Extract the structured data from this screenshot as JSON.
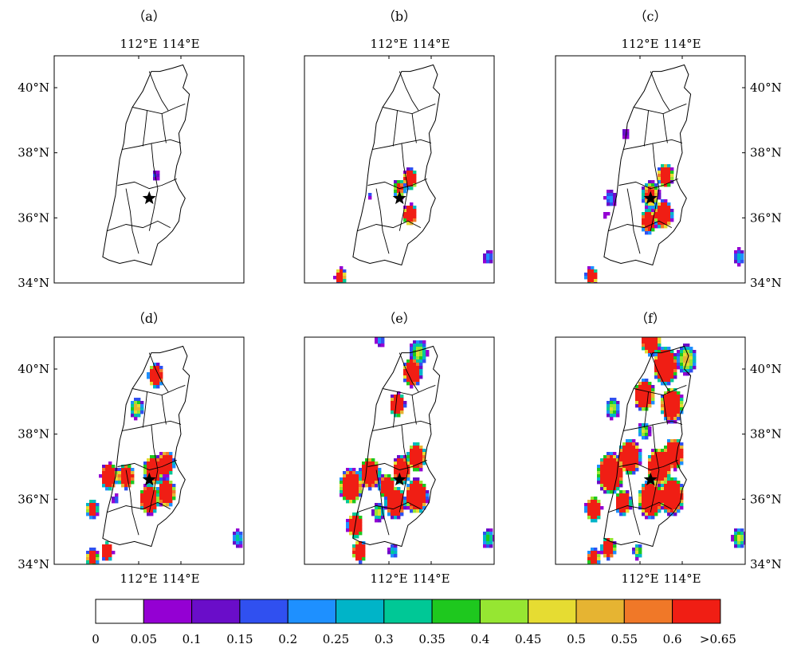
{
  "chart_data": {
    "type": "heatmap",
    "description_panels": "six maps of the same region with a shared colour scale",
    "panels": [
      {
        "label": "（a）",
        "x_ticks": [
          "112°E",
          "114°E"
        ],
        "y_ticks": [
          "40°N",
          "38°N",
          "36°N",
          "34°N"
        ],
        "x_tick_side": "top",
        "y_tick_side": "left",
        "blobs": [
          {
            "lon": 112.8,
            "lat": 37.3,
            "peak": 0.12,
            "r": 0.18
          }
        ]
      },
      {
        "label": "（b）",
        "x_ticks": [
          "112°E",
          "114°E"
        ],
        "y_ticks": [],
        "x_tick_side": "top",
        "y_tick_side": "none",
        "blobs": [
          {
            "lon": 112.5,
            "lat": 36.9,
            "peak": 0.45,
            "r": 0.32
          },
          {
            "lon": 113.0,
            "lat": 37.2,
            "peak": 0.9,
            "r": 0.33
          },
          {
            "lon": 113.0,
            "lat": 36.1,
            "peak": 0.9,
            "r": 0.34
          },
          {
            "lon": 111.1,
            "lat": 36.7,
            "peak": 0.1,
            "r": 0.12
          },
          {
            "lon": 109.7,
            "lat": 34.2,
            "peak": 0.6,
            "r": 0.28
          },
          {
            "lon": 116.7,
            "lat": 34.8,
            "peak": 0.15,
            "r": 0.25
          }
        ]
      },
      {
        "label": "（c）",
        "x_ticks": [
          "112°E",
          "114°E"
        ],
        "y_ticks": [
          "40°N",
          "38°N",
          "36°N",
          "34°N"
        ],
        "x_tick_side": "top",
        "y_tick_side": "right",
        "blobs": [
          {
            "lon": 113.2,
            "lat": 37.3,
            "peak": 0.9,
            "r": 0.38
          },
          {
            "lon": 112.5,
            "lat": 36.7,
            "peak": 0.5,
            "r": 0.45
          },
          {
            "lon": 113.1,
            "lat": 36.1,
            "peak": 1.0,
            "r": 0.45
          },
          {
            "lon": 112.4,
            "lat": 35.9,
            "peak": 0.7,
            "r": 0.4
          },
          {
            "lon": 111.3,
            "lat": 38.6,
            "peak": 0.1,
            "r": 0.2
          },
          {
            "lon": 110.6,
            "lat": 36.6,
            "peak": 0.15,
            "r": 0.3
          },
          {
            "lon": 110.4,
            "lat": 36.1,
            "peak": 0.08,
            "r": 0.13
          },
          {
            "lon": 109.7,
            "lat": 34.2,
            "peak": 0.7,
            "r": 0.3
          },
          {
            "lon": 116.7,
            "lat": 34.8,
            "peak": 0.18,
            "r": 0.28
          }
        ]
      },
      {
        "label": "（d）",
        "x_ticks": [
          "112°E",
          "114°E"
        ],
        "y_ticks": [
          "40°N",
          "38°N",
          "36°N",
          "34°N"
        ],
        "x_tick_side": "bottom",
        "y_tick_side": "left",
        "blobs": [
          {
            "lon": 112.8,
            "lat": 39.8,
            "peak": 0.9,
            "r": 0.38
          },
          {
            "lon": 111.9,
            "lat": 38.8,
            "peak": 0.35,
            "r": 0.34
          },
          {
            "lon": 110.6,
            "lat": 36.7,
            "peak": 1.0,
            "r": 0.42
          },
          {
            "lon": 111.4,
            "lat": 36.7,
            "peak": 0.9,
            "r": 0.4
          },
          {
            "lon": 112.7,
            "lat": 36.9,
            "peak": 0.9,
            "r": 0.48
          },
          {
            "lon": 113.3,
            "lat": 37.1,
            "peak": 0.9,
            "r": 0.4
          },
          {
            "lon": 112.5,
            "lat": 36.0,
            "peak": 1.0,
            "r": 0.48
          },
          {
            "lon": 113.3,
            "lat": 36.2,
            "peak": 1.0,
            "r": 0.45
          },
          {
            "lon": 110.9,
            "lat": 36.0,
            "peak": 0.12,
            "r": 0.18
          },
          {
            "lon": 109.8,
            "lat": 35.7,
            "peak": 0.6,
            "r": 0.3
          },
          {
            "lon": 110.5,
            "lat": 34.4,
            "peak": 0.9,
            "r": 0.3
          },
          {
            "lon": 109.8,
            "lat": 34.2,
            "peak": 0.7,
            "r": 0.3
          },
          {
            "lon": 116.7,
            "lat": 34.8,
            "peak": 0.2,
            "r": 0.3
          }
        ]
      },
      {
        "label": "（e）",
        "x_ticks": [
          "112°E",
          "114°E"
        ],
        "y_ticks": [],
        "x_tick_side": "bottom",
        "y_tick_side": "none",
        "blobs": [
          {
            "lon": 113.1,
            "lat": 39.9,
            "peak": 1.0,
            "r": 0.45
          },
          {
            "lon": 113.4,
            "lat": 40.5,
            "peak": 0.3,
            "r": 0.45
          },
          {
            "lon": 112.4,
            "lat": 38.9,
            "peak": 0.9,
            "r": 0.38
          },
          {
            "lon": 110.2,
            "lat": 36.4,
            "peak": 1.0,
            "r": 0.55
          },
          {
            "lon": 111.1,
            "lat": 36.8,
            "peak": 1.0,
            "r": 0.5
          },
          {
            "lon": 111.9,
            "lat": 36.4,
            "peak": 0.8,
            "r": 0.4
          },
          {
            "lon": 112.6,
            "lat": 36.9,
            "peak": 0.9,
            "r": 0.45
          },
          {
            "lon": 113.3,
            "lat": 37.3,
            "peak": 1.0,
            "r": 0.45
          },
          {
            "lon": 112.3,
            "lat": 35.9,
            "peak": 1.0,
            "r": 0.5
          },
          {
            "lon": 113.3,
            "lat": 36.1,
            "peak": 1.0,
            "r": 0.55
          },
          {
            "lon": 111.5,
            "lat": 35.6,
            "peak": 0.3,
            "r": 0.3
          },
          {
            "lon": 110.4,
            "lat": 35.2,
            "peak": 0.9,
            "r": 0.4
          },
          {
            "lon": 110.6,
            "lat": 34.4,
            "peak": 0.9,
            "r": 0.35
          },
          {
            "lon": 112.2,
            "lat": 34.4,
            "peak": 0.2,
            "r": 0.25
          },
          {
            "lon": 111.6,
            "lat": 40.9,
            "peak": 0.15,
            "r": 0.25
          },
          {
            "lon": 116.7,
            "lat": 34.8,
            "peak": 0.25,
            "r": 0.32
          }
        ]
      },
      {
        "label": "（f）",
        "x_ticks": [
          "112°E",
          "114°E"
        ],
        "y_ticks": [
          "40°N",
          "38°N",
          "36°N",
          "34°N"
        ],
        "x_tick_side": "bottom",
        "y_tick_side": "right",
        "blobs": [
          {
            "lon": 113.2,
            "lat": 40.1,
            "peak": 1.0,
            "r": 0.6
          },
          {
            "lon": 112.5,
            "lat": 40.9,
            "peak": 0.9,
            "r": 0.5
          },
          {
            "lon": 114.2,
            "lat": 40.3,
            "peak": 0.35,
            "r": 0.5
          },
          {
            "lon": 112.2,
            "lat": 39.2,
            "peak": 1.0,
            "r": 0.5
          },
          {
            "lon": 113.5,
            "lat": 38.9,
            "peak": 1.0,
            "r": 0.55
          },
          {
            "lon": 110.7,
            "lat": 38.8,
            "peak": 0.3,
            "r": 0.35
          },
          {
            "lon": 112.2,
            "lat": 38.1,
            "peak": 0.3,
            "r": 0.3
          },
          {
            "lon": 110.6,
            "lat": 36.8,
            "peak": 1.0,
            "r": 0.65
          },
          {
            "lon": 111.5,
            "lat": 37.3,
            "peak": 1.0,
            "r": 0.55
          },
          {
            "lon": 112.9,
            "lat": 37.0,
            "peak": 1.0,
            "r": 0.6
          },
          {
            "lon": 113.6,
            "lat": 37.4,
            "peak": 1.0,
            "r": 0.5
          },
          {
            "lon": 112.5,
            "lat": 36.0,
            "peak": 1.0,
            "r": 0.6
          },
          {
            "lon": 113.5,
            "lat": 36.1,
            "peak": 1.0,
            "r": 0.6
          },
          {
            "lon": 111.2,
            "lat": 35.9,
            "peak": 0.9,
            "r": 0.4
          },
          {
            "lon": 109.8,
            "lat": 35.7,
            "peak": 0.9,
            "r": 0.4
          },
          {
            "lon": 110.5,
            "lat": 34.5,
            "peak": 0.9,
            "r": 0.35
          },
          {
            "lon": 109.8,
            "lat": 34.2,
            "peak": 0.8,
            "r": 0.3
          },
          {
            "lon": 111.9,
            "lat": 34.4,
            "peak": 0.3,
            "r": 0.25
          },
          {
            "lon": 116.7,
            "lat": 34.8,
            "peak": 0.3,
            "r": 0.35
          }
        ]
      }
    ],
    "star": {
      "lon": 112.5,
      "lat": 36.6
    },
    "extent": {
      "lon": [
        109.7,
        117.0
      ],
      "lat": [
        34.0,
        41.0
      ]
    },
    "colorbar": {
      "bounds": [
        "0",
        "0.05",
        "0.1",
        "0.15",
        "0.2",
        "0.25",
        "0.3",
        "0.35",
        "0.4",
        "0.45",
        "0.5",
        "0.55",
        "0.6",
        ">0.65"
      ],
      "colors": [
        "#ffffff",
        "#9400d3",
        "#6a0dc9",
        "#3050f0",
        "#1e90ff",
        "#00b4c8",
        "#00c896",
        "#1ec81e",
        "#96e632",
        "#e6dc32",
        "#e6b432",
        "#f07828",
        "#f01e14"
      ]
    }
  }
}
